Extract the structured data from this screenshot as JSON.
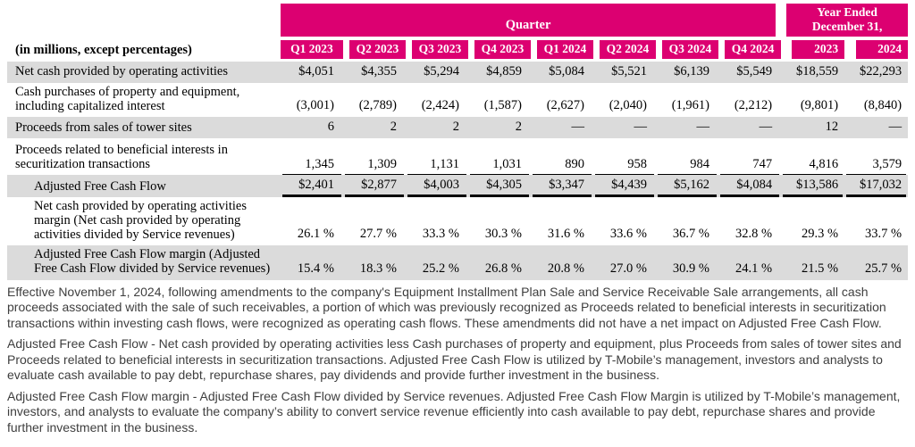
{
  "colors": {
    "magenta": "#DC0071",
    "row_stripe": "#DBDBDB"
  },
  "table": {
    "corner_label": "(in millions, except percentages)",
    "quarter_banner": "Quarter",
    "year_banner": {
      "line1": "Year Ended",
      "line2": "December 31,"
    },
    "columns": [
      "Q1 2023",
      "Q2 2023",
      "Q3 2023",
      "Q4 2023",
      "Q1 2024",
      "Q2 2024",
      "Q3 2024",
      "Q4 2024",
      "2023",
      "2024"
    ],
    "rows": [
      {
        "label": "Net cash provided by operating activities",
        "values": [
          "$4,051",
          "$4,355",
          "$5,294",
          "$4,859",
          "$5,084",
          "$5,521",
          "$6,139",
          "$5,549",
          "$18,559",
          "$22,293"
        ]
      },
      {
        "label": "Cash purchases of property and equipment, including capitalized interest",
        "values": [
          "(3,001)",
          "(2,789)",
          "(2,424)",
          "(1,587)",
          "(2,627)",
          "(2,040)",
          "(1,961)",
          "(2,212)",
          "(9,801)",
          "(8,840)"
        ]
      },
      {
        "label": "Proceeds from sales of tower sites",
        "values": [
          "6",
          "2",
          "2",
          "2",
          "—",
          "—",
          "—",
          "—",
          "12",
          "—"
        ]
      },
      {
        "label": "Proceeds related to beneficial interests in securitization transactions",
        "values": [
          "1,345",
          "1,309",
          "1,131",
          "1,031",
          "890",
          "958",
          "984",
          "747",
          "4,816",
          "3,579"
        ]
      },
      {
        "label": "Adjusted Free Cash Flow",
        "values": [
          "$2,401",
          "$2,877",
          "$4,003",
          "$4,305",
          "$3,347",
          "$4,439",
          "$5,162",
          "$4,084",
          "$13,586",
          "$17,032"
        ]
      },
      {
        "label": "Net cash provided by operating activities margin (Net cash provided by operating activities divided by Service revenues)",
        "values": [
          "26.1 %",
          "27.7 %",
          "33.3 %",
          "30.3 %",
          "31.6 %",
          "33.6 %",
          "36.7 %",
          "32.8 %",
          "29.3 %",
          "33.7 %"
        ]
      },
      {
        "label": "Adjusted Free Cash Flow margin (Adjusted Free Cash Flow divided by Service revenues)",
        "values": [
          "15.4 %",
          "18.3 %",
          "25.2 %",
          "26.8 %",
          "20.8 %",
          "27.0 %",
          "30.9 %",
          "24.1 %",
          "21.5 %",
          "25.7 %"
        ]
      }
    ]
  },
  "footnotes": [
    "Effective November 1, 2024, following amendments to the company's Equipment Installment Plan Sale and Service Receivable Sale arrangements, all cash proceeds associated with the sale of such receivables, a portion of which was previously recognized as Proceeds related to beneficial interests in securitization transactions within investing cash flows, were recognized as operating cash flows. These amendments did not have a net impact on Adjusted Free Cash Flow.",
    "Adjusted Free Cash Flow - Net cash provided by operating activities less Cash purchases of property and equipment, plus Proceeds from sales of tower sites and Proceeds related to beneficial interests in securitization transactions. Adjusted Free Cash Flow is utilized by T-Mobile’s management, investors and analysts to evaluate cash available to pay debt, repurchase shares, pay dividends and provide further investment in the business.",
    "Adjusted Free Cash Flow margin - Adjusted Free Cash Flow divided by Service revenues. Adjusted Free Cash Flow Margin is utilized by T-Mobile’s management, investors, and analysts to evaluate the company’s ability to convert service revenue efficiently into cash available to pay debt, repurchase shares and provide further investment in the business."
  ]
}
